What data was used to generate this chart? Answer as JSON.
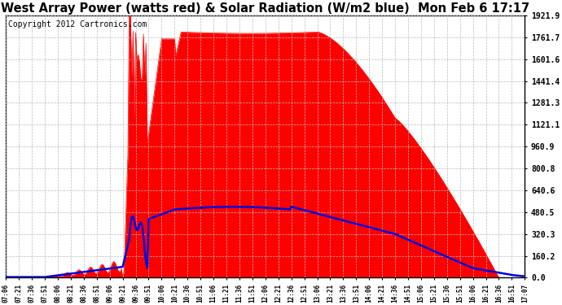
{
  "title": "West Array Power (watts red) & Solar Radiation (W/m2 blue)  Mon Feb 6 17:17",
  "copyright_text": "Copyright 2012 Cartronics.com",
  "y_ticks": [
    0.0,
    160.2,
    320.3,
    480.5,
    640.6,
    800.8,
    960.9,
    1121.1,
    1281.3,
    1441.4,
    1601.6,
    1761.7,
    1921.9
  ],
  "x_tick_labels": [
    "07:06",
    "07:21",
    "07:36",
    "07:51",
    "08:06",
    "08:21",
    "08:36",
    "08:51",
    "09:06",
    "09:21",
    "09:36",
    "09:51",
    "10:06",
    "10:21",
    "10:36",
    "10:51",
    "11:06",
    "11:21",
    "11:36",
    "11:51",
    "12:06",
    "12:21",
    "12:36",
    "12:51",
    "13:06",
    "13:21",
    "13:36",
    "13:51",
    "14:06",
    "14:21",
    "14:36",
    "14:51",
    "15:06",
    "15:21",
    "15:36",
    "15:51",
    "16:06",
    "16:21",
    "16:36",
    "16:51",
    "17:07"
  ],
  "ymax": 1921.9,
  "bg_color": "#ffffff",
  "grid_color": "#bbbbbb",
  "red_color": "#ff0000",
  "blue_color": "#0000dd",
  "title_fontsize": 10.5,
  "copyright_fontsize": 7
}
